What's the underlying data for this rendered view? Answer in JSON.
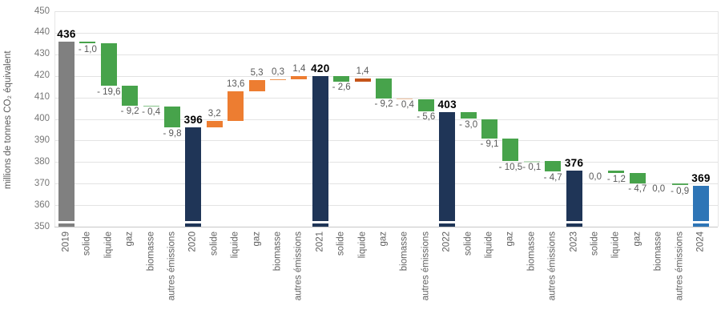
{
  "chart_data": {
    "type": "waterfall",
    "title": "",
    "ylabel": "millions de tonnes CO₂ équivalent",
    "ylim": [
      350,
      450
    ],
    "ytick_step": 10,
    "yticks": [
      350,
      360,
      370,
      380,
      390,
      400,
      410,
      420,
      430,
      440,
      450
    ],
    "grid": true,
    "legend": "none",
    "colors": {
      "start_total": "#808080",
      "intermediate_total": "#1F3557",
      "end_total": "#2E75B6",
      "decrease": "#47A34B",
      "increase": "#ED7D31",
      "grid": "#E3E3E3",
      "axis_text": "#767676",
      "value_label": "#595959",
      "total_label": "#000000",
      "background": "#FFFFFF"
    },
    "bars": [
      {
        "category": "2019",
        "kind": "total",
        "value": 436,
        "label": "436",
        "color": "#808080"
      },
      {
        "category": "solide",
        "kind": "delta",
        "value": -1.0,
        "label": "- 1,0",
        "color": "#47A34B"
      },
      {
        "category": "liquide",
        "kind": "delta",
        "value": -19.6,
        "label": "- 19,6",
        "color": "#47A34B"
      },
      {
        "category": "gaz",
        "kind": "delta",
        "value": -9.2,
        "label": "- 9,2",
        "color": "#47A34B"
      },
      {
        "category": "biomasse",
        "kind": "delta",
        "value": -0.4,
        "label": "- 0,4",
        "color": "#85C388"
      },
      {
        "category": "autres émissions",
        "kind": "delta",
        "value": -9.8,
        "label": "- 9,8",
        "color": "#47A34B"
      },
      {
        "category": "2020",
        "kind": "total",
        "value": 396,
        "label": "396",
        "color": "#1F3557"
      },
      {
        "category": "solide",
        "kind": "delta",
        "value": 3.2,
        "label": "3,2",
        "color": "#ED7D31"
      },
      {
        "category": "liquide",
        "kind": "delta",
        "value": 13.6,
        "label": "13,6",
        "color": "#ED7D31"
      },
      {
        "category": "gaz",
        "kind": "delta",
        "value": 5.3,
        "label": "5,3",
        "color": "#ED7D31"
      },
      {
        "category": "biomasse",
        "kind": "delta",
        "value": 0.3,
        "label": "0,3",
        "color": "#EF9450"
      },
      {
        "category": "autres émissions",
        "kind": "delta",
        "value": 1.4,
        "label": "1,4",
        "color": "#ED7D31"
      },
      {
        "category": "2021",
        "kind": "total",
        "value": 420,
        "label": "420",
        "color": "#1F3557"
      },
      {
        "category": "solide",
        "kind": "delta",
        "value": -2.6,
        "label": "- 2,6",
        "color": "#47A34B"
      },
      {
        "category": "liquide",
        "kind": "delta",
        "value": 1.4,
        "label": "1,4",
        "color": "#C5551A"
      },
      {
        "category": "gaz",
        "kind": "delta",
        "value": -9.2,
        "label": "- 9,2",
        "color": "#47A34B"
      },
      {
        "category": "biomasse",
        "kind": "delta",
        "value": -0.4,
        "label": "- 0,4",
        "color": "#F3C5A2"
      },
      {
        "category": "autres émissions",
        "kind": "delta",
        "value": -5.6,
        "label": "- 5,6",
        "color": "#47A34B"
      },
      {
        "category": "2022",
        "kind": "total",
        "value": 403,
        "label": "403",
        "color": "#1F3557"
      },
      {
        "category": "solide",
        "kind": "delta",
        "value": -3.0,
        "label": "- 3,0",
        "color": "#47A34B"
      },
      {
        "category": "liquide",
        "kind": "delta",
        "value": -9.1,
        "label": "- 9,1",
        "color": "#47A34B"
      },
      {
        "category": "gaz",
        "kind": "delta",
        "value": -10.5,
        "label": "- 10,5",
        "color": "#47A34B"
      },
      {
        "category": "biomasse",
        "kind": "delta",
        "value": -0.1,
        "label": "- 0,1",
        "color": "#C2DFC3"
      },
      {
        "category": "autres émissions",
        "kind": "delta",
        "value": -4.7,
        "label": "- 4,7",
        "color": "#47A34B"
      },
      {
        "category": "2023",
        "kind": "total",
        "value": 376,
        "label": "376",
        "color": "#1F3557"
      },
      {
        "category": "solide",
        "kind": "delta",
        "value": 0.0,
        "label": "0,0",
        "color": null
      },
      {
        "category": "liquide",
        "kind": "delta",
        "value": -1.2,
        "label": "- 1,2",
        "color": "#47A34B"
      },
      {
        "category": "gaz",
        "kind": "delta",
        "value": -4.7,
        "label": "- 4,7",
        "color": "#47A34B"
      },
      {
        "category": "biomasse",
        "kind": "delta",
        "value": 0.0,
        "label": "0,0",
        "color": null
      },
      {
        "category": "autres émissions",
        "kind": "delta",
        "value": -0.9,
        "label": "- 0,9",
        "color": "#58AA5C"
      },
      {
        "category": "2024",
        "kind": "total",
        "value": 369,
        "label": "369",
        "color": "#2E75B6"
      }
    ]
  }
}
